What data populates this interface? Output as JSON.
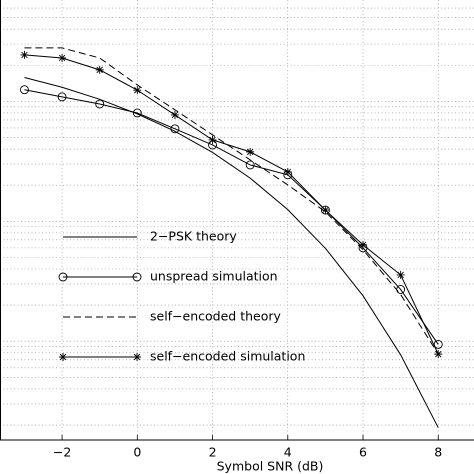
{
  "chart_data": {
    "type": "line",
    "x_label": "Symbol SNR (dB)",
    "x": [
      -3,
      -2,
      -1,
      0,
      1,
      2,
      3,
      4,
      5,
      6,
      7,
      8
    ],
    "series": [
      {
        "name": "2−PSK theory",
        "color": "#000000",
        "dash": "solid",
        "marker": "none",
        "values": [
          0.158,
          0.131,
          0.104,
          0.0786,
          0.0563,
          0.0375,
          0.0229,
          0.0125,
          0.00595,
          0.00239,
          0.00077,
          0.00019
        ]
      },
      {
        "name": "unspread simulation",
        "color": "#000000",
        "dash": "solid",
        "marker": "circle",
        "values": [
          0.125,
          0.109,
          0.095,
          0.08,
          0.059,
          0.0433,
          0.0295,
          0.0244,
          0.0124,
          0.006,
          0.0027,
          0.00094
        ]
      },
      {
        "name": "self−encoded theory",
        "color": "#000000",
        "dash": "dashed",
        "marker": "none",
        "values": [
          0.279,
          0.279,
          0.23,
          0.137,
          0.085,
          0.0525,
          0.0325,
          0.0201,
          0.012,
          0.00578,
          0.00245,
          0.00078
        ]
      },
      {
        "name": "self−encoded simulation",
        "color": "#000000",
        "dash": "solid",
        "marker": "star",
        "values": [
          0.244,
          0.23,
          0.183,
          0.124,
          0.077,
          0.0477,
          0.0379,
          0.0258,
          0.0124,
          0.00636,
          0.00357,
          0.00078
        ]
      }
    ],
    "xlim": [
      -3.65,
      8.95
    ],
    "xticks": [
      {
        "value": -2,
        "label": "−2"
      },
      0,
      2,
      4,
      6,
      8
    ],
    "ylim": [
      0.00015,
      0.7
    ],
    "y_scale": "log",
    "grid": true,
    "legend_position": "center-left"
  }
}
